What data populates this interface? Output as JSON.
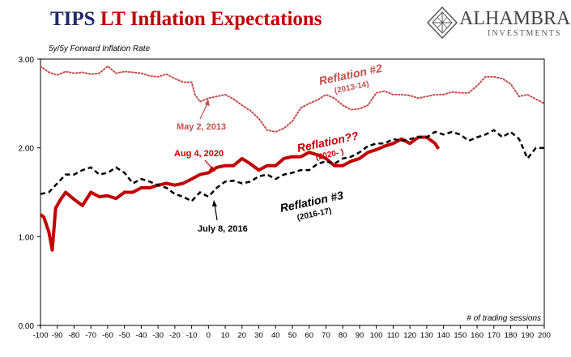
{
  "header": {
    "title_part1": "TIPS",
    "title_part2": "LT Inflation Expectations"
  },
  "logo": {
    "name": "ALHAMBRA",
    "sub": "INVESTMENTS"
  },
  "colors": {
    "series_2013": "#c0504d",
    "series_2020": "#c00000",
    "series_2016": "#000000",
    "title_blue": "#1f2a6b",
    "title_red": "#c00000"
  },
  "chart_data": {
    "type": "line",
    "title": "5y/5y Forward Inflation Rate",
    "xlabel": "# of trading sessions",
    "xlim": [
      -100,
      200
    ],
    "ylim": [
      0,
      3
    ],
    "xticks": [
      -100,
      -90,
      -80,
      -70,
      -60,
      -50,
      -40,
      -30,
      -20,
      -10,
      0,
      10,
      20,
      30,
      40,
      50,
      60,
      70,
      80,
      90,
      100,
      110,
      120,
      130,
      140,
      150,
      160,
      170,
      180,
      190,
      200
    ],
    "yticks": [
      0,
      1,
      2,
      3
    ],
    "ytick_labels": [
      "0.00",
      "1.00",
      "2.00",
      "3.00"
    ],
    "grid": false,
    "legend": "none",
    "series": [
      {
        "name": "Reflation #2 (2013-14)",
        "style": "dotted",
        "color": "#c0504d",
        "x": [
          -100,
          -95,
          -90,
          -85,
          -80,
          -75,
          -70,
          -65,
          -60,
          -55,
          -50,
          -45,
          -40,
          -35,
          -30,
          -25,
          -20,
          -15,
          -10,
          -8,
          -5,
          0,
          5,
          10,
          15,
          20,
          25,
          30,
          35,
          40,
          45,
          50,
          55,
          60,
          65,
          70,
          75,
          80,
          85,
          90,
          95,
          100,
          105,
          110,
          115,
          120,
          125,
          130,
          135,
          140,
          145,
          150,
          155,
          160,
          165,
          170,
          175,
          180,
          185,
          190,
          195,
          200
        ],
        "y": [
          2.92,
          2.85,
          2.82,
          2.86,
          2.84,
          2.85,
          2.83,
          2.84,
          2.92,
          2.84,
          2.86,
          2.85,
          2.84,
          2.81,
          2.8,
          2.83,
          2.78,
          2.74,
          2.74,
          2.6,
          2.52,
          2.56,
          2.58,
          2.6,
          2.55,
          2.48,
          2.42,
          2.33,
          2.2,
          2.18,
          2.22,
          2.3,
          2.45,
          2.5,
          2.54,
          2.6,
          2.56,
          2.48,
          2.43,
          2.44,
          2.48,
          2.62,
          2.64,
          2.6,
          2.6,
          2.59,
          2.56,
          2.58,
          2.6,
          2.6,
          2.63,
          2.62,
          2.62,
          2.7,
          2.8,
          2.8,
          2.78,
          2.72,
          2.58,
          2.6,
          2.55,
          2.5
        ]
      },
      {
        "name": "Reflation?? (2020- )",
        "style": "solid",
        "color": "#c00000",
        "x": [
          -100,
          -98,
          -95,
          -93,
          -91,
          -88,
          -85,
          -80,
          -75,
          -70,
          -65,
          -60,
          -55,
          -50,
          -45,
          -40,
          -35,
          -30,
          -25,
          -20,
          -15,
          -10,
          -5,
          0,
          5,
          10,
          15,
          20,
          25,
          30,
          35,
          40,
          45,
          50,
          55,
          60,
          65,
          70,
          75,
          80,
          85,
          90,
          95,
          100,
          105,
          110,
          115,
          120,
          125,
          130,
          135,
          137
        ],
        "y": [
          1.25,
          1.22,
          1.05,
          0.85,
          1.32,
          1.42,
          1.5,
          1.42,
          1.35,
          1.5,
          1.45,
          1.46,
          1.43,
          1.5,
          1.5,
          1.55,
          1.55,
          1.58,
          1.6,
          1.58,
          1.6,
          1.65,
          1.7,
          1.72,
          1.78,
          1.8,
          1.8,
          1.88,
          1.82,
          1.75,
          1.8,
          1.8,
          1.88,
          1.9,
          1.9,
          1.95,
          1.92,
          1.88,
          1.8,
          1.8,
          1.85,
          1.88,
          1.95,
          1.98,
          2.02,
          2.05,
          2.1,
          2.05,
          2.12,
          2.12,
          2.05,
          1.99
        ]
      },
      {
        "name": "Reflation #3 (2016-17)",
        "style": "dashed",
        "color": "#000000",
        "x": [
          -100,
          -95,
          -90,
          -85,
          -80,
          -75,
          -70,
          -65,
          -60,
          -55,
          -50,
          -45,
          -40,
          -35,
          -30,
          -25,
          -20,
          -15,
          -10,
          -5,
          0,
          5,
          10,
          15,
          20,
          25,
          30,
          35,
          40,
          45,
          50,
          55,
          60,
          65,
          70,
          75,
          80,
          85,
          90,
          95,
          100,
          105,
          110,
          115,
          120,
          125,
          130,
          135,
          140,
          145,
          150,
          155,
          160,
          165,
          170,
          175,
          180,
          185,
          190,
          195,
          200
        ],
        "y": [
          1.48,
          1.5,
          1.6,
          1.7,
          1.7,
          1.75,
          1.78,
          1.7,
          1.72,
          1.78,
          1.72,
          1.6,
          1.65,
          1.62,
          1.58,
          1.55,
          1.48,
          1.45,
          1.4,
          1.5,
          1.45,
          1.55,
          1.62,
          1.63,
          1.6,
          1.62,
          1.68,
          1.7,
          1.65,
          1.7,
          1.72,
          1.75,
          1.75,
          1.82,
          1.85,
          1.82,
          1.88,
          1.9,
          1.95,
          2.02,
          2.05,
          2.05,
          2.1,
          2.08,
          2.1,
          2.12,
          2.12,
          2.18,
          2.15,
          2.18,
          2.15,
          2.08,
          2.12,
          2.15,
          2.2,
          2.12,
          2.18,
          2.1,
          1.88,
          2.0,
          2.0
        ]
      }
    ],
    "annotations": [
      {
        "text": "May 2, 2013",
        "color": "#c0504d"
      },
      {
        "text": "Aug 4, 2020",
        "color": "#c00000"
      },
      {
        "text": "July 8, 2016",
        "color": "#000000"
      },
      {
        "text": "Reflation #2",
        "sub": "(2013-14)",
        "color": "#c0504d"
      },
      {
        "text": "Reflation??",
        "sub": "(2020- )",
        "color": "#c00000"
      },
      {
        "text": "Reflation #3",
        "sub": "(2016-17)",
        "color": "#000000"
      }
    ]
  }
}
